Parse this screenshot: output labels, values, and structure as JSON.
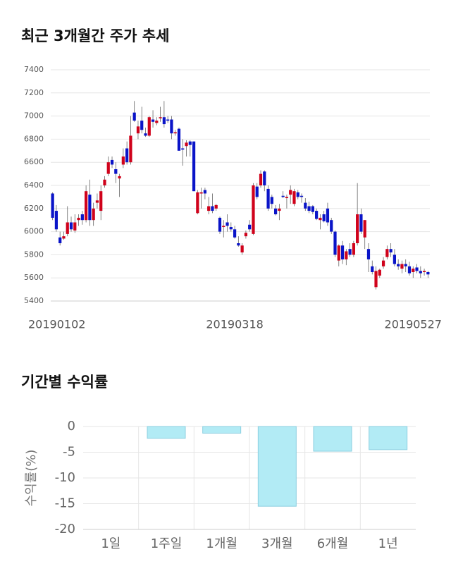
{
  "charts": [
    {
      "type": "candlestick",
      "title": "최근 3개월간 주가 추세",
      "categories": [
        "20190102",
        null,
        null,
        null,
        null,
        null,
        null,
        null,
        null,
        null,
        null,
        null,
        null,
        null,
        null,
        null,
        null,
        null,
        null,
        null,
        null,
        null,
        null,
        null,
        null,
        null,
        null,
        null,
        null,
        null,
        null,
        null,
        null,
        null,
        null,
        null,
        null,
        null,
        null,
        null,
        null,
        null,
        null,
        null,
        null,
        null,
        null,
        null,
        null,
        "20190318",
        null,
        null,
        null,
        null,
        null,
        null,
        null,
        null,
        null,
        null,
        null,
        null,
        null,
        null,
        null,
        null,
        null,
        null,
        null,
        null,
        null,
        null,
        null,
        null,
        null,
        null,
        null,
        null,
        null,
        null,
        null,
        null,
        null,
        null,
        null,
        null,
        null,
        null,
        null,
        null,
        null,
        null,
        null,
        null,
        null,
        null,
        null,
        "20190527",
        null,
        null,
        null,
        null
      ],
      "open": [
        6330,
        6180,
        5950,
        5940,
        5980,
        6080,
        6010,
        6100,
        6150,
        6100,
        6320,
        6100,
        6250,
        6180,
        6400,
        6500,
        6620,
        6540,
        6460,
        6580,
        6720,
        6600,
        7030,
        6850,
        6960,
        6850,
        6830,
        6970,
        6940,
        6980,
        6990,
        6970,
        6970,
        6850,
        6890,
        6720,
        6740,
        6780,
        6780,
        6160,
        6330,
        6360,
        6180,
        6220,
        6200,
        6120,
        6040,
        6080,
        6040,
        6020,
        5900,
        5820,
        5960,
        6060,
        5980,
        6390,
        6400,
        6520,
        6370,
        6300,
        6200,
        6180,
        6310,
        6290,
        6320,
        6240,
        6340,
        6310,
        6250,
        6220,
        6220,
        6180,
        6100,
        6150,
        6200,
        6100,
        6000,
        5750,
        5880,
        5760,
        5850,
        5800,
        5900,
        6150,
        5950,
        5850,
        5700,
        5520,
        5620,
        5700,
        5780,
        5850,
        5800,
        5720,
        5680,
        5720,
        5700,
        5650,
        5690,
        5660,
        5650,
        5650
      ],
      "high": [
        6340,
        6230,
        6000,
        6000,
        6220,
        6130,
        6150,
        6150,
        6180,
        6400,
        6450,
        6250,
        6330,
        6400,
        6480,
        6650,
        6650,
        6600,
        6500,
        6720,
        6780,
        7000,
        7130,
        6960,
        7080,
        6900,
        7000,
        7050,
        6990,
        7080,
        7130,
        7000,
        7000,
        6880,
        6900,
        6800,
        6790,
        6790,
        6780,
        6360,
        6380,
        6380,
        6300,
        6330,
        6240,
        6130,
        6100,
        6150,
        6080,
        6050,
        5960,
        5900,
        6010,
        6100,
        6420,
        6420,
        6530,
        6530,
        6400,
        6320,
        6230,
        6240,
        6350,
        6320,
        6400,
        6370,
        6360,
        6330,
        6290,
        6260,
        6230,
        6200,
        6150,
        6180,
        6250,
        6120,
        6010,
        5890,
        5920,
        5850,
        5900,
        5920,
        6420,
        6200,
        6100,
        5900,
        5750,
        5700,
        5680,
        5780,
        5880,
        5900,
        5850,
        5760,
        5750,
        5760,
        5740,
        5700,
        5720,
        5700,
        5680,
        5660
      ],
      "low": [
        6100,
        6000,
        5880,
        5930,
        5960,
        6000,
        5990,
        6050,
        6060,
        6080,
        6050,
        6050,
        6200,
        6100,
        6380,
        6480,
        6550,
        6420,
        6300,
        6550,
        6580,
        6580,
        6950,
        6800,
        6850,
        6820,
        6820,
        6900,
        6920,
        6950,
        6900,
        6940,
        6800,
        6830,
        6700,
        6570,
        6650,
        6650,
        6350,
        6150,
        6200,
        6280,
        6150,
        6160,
        6180,
        5980,
        5950,
        6000,
        6000,
        5940,
        5870,
        5800,
        5940,
        6000,
        5970,
        6280,
        6380,
        6350,
        6180,
        6200,
        6140,
        6100,
        6290,
        6200,
        6240,
        6220,
        6280,
        6250,
        6180,
        6160,
        6150,
        6100,
        6020,
        6080,
        6050,
        5980,
        5780,
        5700,
        5720,
        5710,
        5780,
        5780,
        5880,
        5980,
        5850,
        5650,
        5630,
        5500,
        5600,
        5680,
        5760,
        5780,
        5700,
        5670,
        5640,
        5650,
        5620,
        5600,
        5640,
        5600,
        5620,
        5600
      ],
      "close": [
        6120,
        6020,
        5900,
        5960,
        6080,
        6020,
        6080,
        6120,
        6100,
        6350,
        6100,
        6200,
        6270,
        6350,
        6450,
        6600,
        6580,
        6500,
        6480,
        6650,
        6600,
        6830,
        6960,
        6910,
        6880,
        6830,
        6990,
        6950,
        6960,
        6990,
        6930,
        6960,
        6850,
        6860,
        6700,
        6710,
        6770,
        6750,
        6350,
        6340,
        6340,
        6330,
        6220,
        6180,
        6230,
        6000,
        6050,
        6050,
        6020,
        5950,
        5880,
        5880,
        5990,
        6020,
        6400,
        6300,
        6500,
        6400,
        6200,
        6240,
        6150,
        6200,
        6300,
        6300,
        6360,
        6350,
        6300,
        6300,
        6200,
        6180,
        6170,
        6110,
        6120,
        6090,
        6080,
        6000,
        5800,
        5880,
        5760,
        5830,
        5800,
        5900,
        6150,
        6000,
        6100,
        5760,
        5650,
        5660,
        5670,
        5750,
        5850,
        5820,
        5720,
        5700,
        5720,
        5700,
        5640,
        5680,
        5660,
        5640,
        5660,
        5630
      ],
      "up_color": "#d0021b",
      "down_color": "#0a14c8",
      "ylim": [
        5400,
        7400
      ],
      "yticks": [
        5400,
        5600,
        5800,
        6000,
        6200,
        6400,
        6600,
        6800,
        7000,
        7200,
        7400
      ],
      "grid": true
    },
    {
      "type": "bar",
      "title": "기간별 수익률",
      "y_label": "수익률(%)",
      "categories": [
        "1일",
        "1주일",
        "1개월",
        "3개월",
        "6개월",
        "1년"
      ],
      "values": [
        0,
        -2.3,
        -1.3,
        -15.5,
        -4.8,
        -4.5
      ],
      "color": "#b2ebf5",
      "edge_color": "#8ccfe0",
      "ylim": [
        -20,
        0
      ],
      "yticks": [
        0,
        -5,
        -10,
        -15,
        -20
      ],
      "grid": true
    }
  ]
}
